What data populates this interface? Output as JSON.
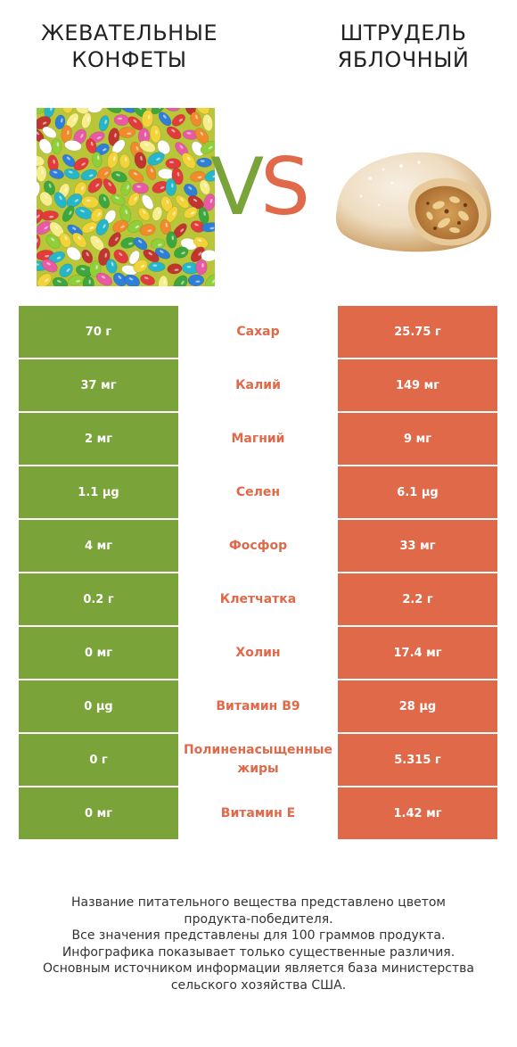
{
  "header": {
    "left_title_line1": "ЖЕВАТЕЛЬНЫЕ",
    "left_title_line2": "КОНФЕТЫ",
    "right_title_line1": "ШТРУДЕЛЬ",
    "right_title_line2": "ЯБЛОЧНЫЙ",
    "vs_v": "V",
    "vs_s": "S"
  },
  "colors": {
    "left_winner": "#7aa33a",
    "right_winner": "#e0694a"
  },
  "rows": [
    {
      "left": "70 г",
      "nutrient": "Сахар",
      "right": "25.75 г"
    },
    {
      "left": "37 мг",
      "nutrient": "Калий",
      "right": "149 мг"
    },
    {
      "left": "2 мг",
      "nutrient": "Магний",
      "right": "9 мг"
    },
    {
      "left": "1.1 µg",
      "nutrient": "Селен",
      "right": "6.1 µg"
    },
    {
      "left": "4 мг",
      "nutrient": "Фосфор",
      "right": "33 мг"
    },
    {
      "left": "0.2 г",
      "nutrient": "Клетчатка",
      "right": "2.2 г"
    },
    {
      "left": "0 мг",
      "nutrient": "Холин",
      "right": "17.4 мг"
    },
    {
      "left": "0 µg",
      "nutrient": "Витамин B9",
      "right": "28 µg"
    },
    {
      "left": "0 г",
      "nutrient": "Полиненасыщенные жиры",
      "right": "5.315 г"
    },
    {
      "left": "0 мг",
      "nutrient": "Витамин E",
      "right": "1.42 мг"
    }
  ],
  "footer": {
    "line1": "Название питательного вещества представлено цветом",
    "line2": "продукта-победителя.",
    "line3": "Все значения представлены для 100 граммов продукта.",
    "line4": "Инфографика показывает только существенные различия.",
    "line5": "Основным источником информации является база министерства",
    "line6": "сельского хозяйства США."
  }
}
